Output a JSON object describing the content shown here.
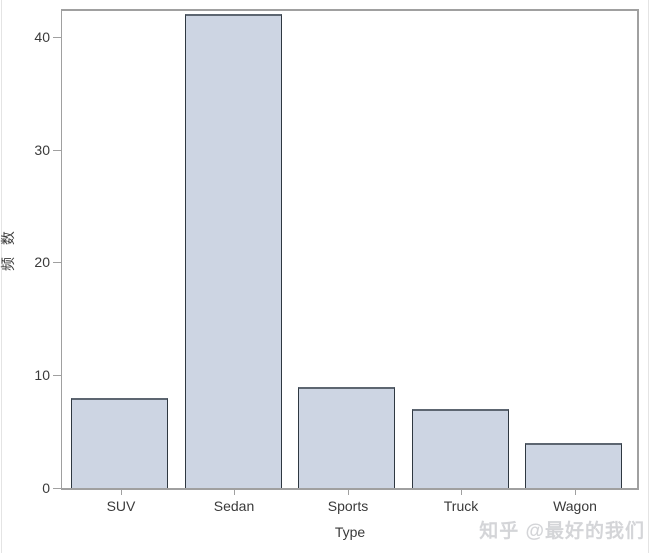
{
  "chart_data": {
    "type": "bar",
    "title": "",
    "categories": [
      "SUV",
      "Sedan",
      "Sports",
      "Truck",
      "Wagon"
    ],
    "values": [
      8,
      42,
      9,
      7,
      4
    ],
    "xlabel": "Type",
    "ylabel": "频 数",
    "yticks": [
      0,
      10,
      20,
      30,
      40
    ],
    "ylim": [
      0,
      42.3
    ],
    "grid": false,
    "legend": "none",
    "colors": {
      "bar_fill": "#cdd5e3",
      "bar_border": "#2f3841",
      "frame": "#a0a0a0",
      "tick_label": "#3a3a3a"
    }
  },
  "watermark": {
    "text": "知乎 @最好的我们",
    "color": "#d4d5d8"
  }
}
